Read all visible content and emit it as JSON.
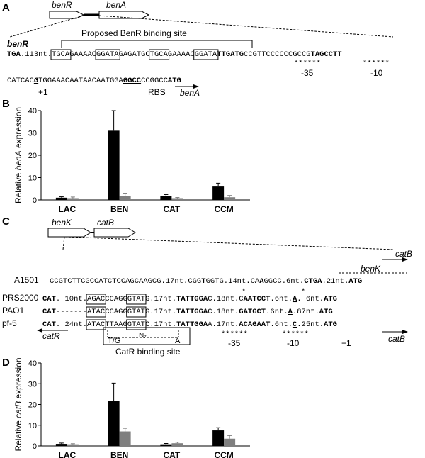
{
  "panel_a": {
    "label": "A",
    "gene_left": "benR",
    "gene_right": "benA",
    "binding_site_label": "Proposed BenR binding site",
    "row1_gene_label": "benR",
    "row1": [
      {
        "t": "TGA",
        "b": true
      },
      {
        "t": ".113nt."
      },
      {
        "t": "TGCA",
        "box": true
      },
      {
        "t": "GAAAAC"
      },
      {
        "t": "GGATA",
        "box": true
      },
      {
        "t": "GAGATGC"
      },
      {
        "t": "TGCA",
        "box": true
      },
      {
        "t": "GAAAAC"
      },
      {
        "t": "GGATA",
        "box": true
      },
      {
        "t": "TTGATG",
        "b": true
      },
      {
        "t": "CCGTTCCCCCCGCCG"
      },
      {
        "t": "TAGCCT",
        "b": true
      },
      {
        "t": "T"
      }
    ],
    "minus35": "-35",
    "minus10": "-10",
    "stars": "******",
    "row2": [
      {
        "t": "CATCAC"
      },
      {
        "t": "G",
        "b": true,
        "i": true,
        "u": true
      },
      {
        "t": "TGGAAACAATAACAATGGA"
      },
      {
        "t": "GGCC",
        "b": true,
        "u": true
      },
      {
        "t": "CCGGCC"
      },
      {
        "t": "ATG",
        "b": true
      }
    ],
    "plus1": "+1",
    "rbs": "RBS",
    "arrow_gene": "benA"
  },
  "panel_c": {
    "label": "C",
    "gene_left": "benK",
    "gene_right": "catB",
    "strains": [
      "A1501",
      "PRS2000",
      "PAO1",
      "pf-5"
    ],
    "a1501_seq": [
      {
        "t": "CCGTCTTCGCCATCTCCAGCAAGCG.17nt.CGG"
      },
      {
        "t": "T",
        "b": true
      },
      {
        "t": "GGTG.14nt.CA"
      },
      {
        "t": "A",
        "b": true
      },
      {
        "t": "GGCC.6nt."
      },
      {
        "t": "CTGA",
        "b": true
      },
      {
        "t": ".21nt."
      },
      {
        "t": "ATG",
        "b": true
      }
    ],
    "benK_label": "benK",
    "catB_label": "catB",
    "prs_seq": [
      {
        "t": "CAT",
        "b": true
      },
      {
        "t": ". 10nt."
      },
      {
        "t": "AGAC",
        "box": true
      },
      {
        "t": "CCAGG"
      },
      {
        "t": "GTAT",
        "box": true
      },
      {
        "t": "G.17nt."
      },
      {
        "t": "TATTGGA",
        "b": true
      },
      {
        "t": "C.18nt.C"
      },
      {
        "t": "AATCCT",
        "b": true
      },
      {
        "t": ".6nt."
      },
      {
        "t": "A",
        "b": true,
        "u": true
      },
      {
        "t": ". 6nt."
      },
      {
        "t": "ATG",
        "b": true
      }
    ],
    "pao_seq": [
      {
        "t": "CAT",
        "b": true
      },
      {
        "t": "-------"
      },
      {
        "t": "ATAC",
        "box": true
      },
      {
        "t": "CCAGG"
      },
      {
        "t": "GTAT",
        "box": true
      },
      {
        "t": "G.17nt."
      },
      {
        "t": "TATTGGA",
        "b": true
      },
      {
        "t": "C.18nt."
      },
      {
        "t": "GATGCT",
        "b": true
      },
      {
        "t": ".6nt."
      },
      {
        "t": "A",
        "b": true,
        "u": true
      },
      {
        "t": ".87nt."
      },
      {
        "t": "ATG",
        "b": true
      }
    ],
    "pf5_seq": [
      {
        "t": "CAT",
        "b": true
      },
      {
        "t": ". 24nt."
      },
      {
        "t": "ATAC",
        "box": true
      },
      {
        "t": "TTAAG"
      },
      {
        "t": "GTAT",
        "box": true
      },
      {
        "t": "C.17nt."
      },
      {
        "t": "TATTGGA",
        "b": true
      },
      {
        "t": "A.17nt."
      },
      {
        "t": "ACAGAAT",
        "b": true
      },
      {
        "t": ".6nt."
      },
      {
        "t": "C",
        "b": true,
        "u": true
      },
      {
        "t": ".25nt."
      },
      {
        "t": "ATG",
        "b": true
      }
    ],
    "catR_label": "catR",
    "tg": "T/G",
    "n7": "N₇",
    "a": "A",
    "binding_site_label": "CatR binding site",
    "stars": "******",
    "minus35": "-35",
    "minus10": "-10",
    "plus1": "+1",
    "star_single": "*",
    "arrow_gene": "catB"
  },
  "panel_b": {
    "label": "B",
    "chart_data": {
      "type": "bar",
      "categories": [
        "LAC",
        "BEN",
        "CAT",
        "CCM"
      ],
      "series": [
        {
          "values": [
            1.0,
            31.0,
            1.8,
            6.0
          ],
          "errors": [
            0.4,
            9.0,
            0.6,
            1.5
          ],
          "color": "#000000"
        },
        {
          "values": [
            0.8,
            1.8,
            0.8,
            1.2
          ],
          "errors": [
            0.5,
            1.2,
            0.3,
            0.8
          ],
          "color": "#7f7f7f"
        }
      ],
      "ylabel_pre": "Relative ",
      "ylabel_italic": "benA",
      "ylabel_post": " expression",
      "yticks": [
        0,
        10,
        20,
        30,
        40
      ],
      "ylim": [
        0,
        40
      ]
    }
  },
  "panel_d": {
    "label": "D",
    "chart_data": {
      "type": "bar",
      "categories": [
        "LAC",
        "BEN",
        "CAT",
        "CCM"
      ],
      "series": [
        {
          "values": [
            1.0,
            21.8,
            0.8,
            7.5
          ],
          "errors": [
            0.4,
            8.5,
            0.4,
            1.3
          ],
          "color": "#000000"
        },
        {
          "values": [
            0.8,
            7.0,
            1.3,
            3.5
          ],
          "errors": [
            0.3,
            1.5,
            0.5,
            1.5
          ],
          "color": "#7f7f7f"
        }
      ],
      "ylabel_pre": "Relative ",
      "ylabel_italic": "catB",
      "ylabel_post": " expression",
      "yticks": [
        0,
        10,
        20,
        30,
        40
      ],
      "ylim": [
        0,
        40
      ]
    }
  }
}
